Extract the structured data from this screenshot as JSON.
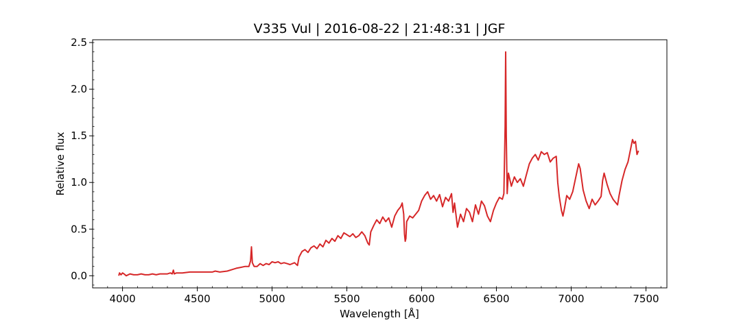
{
  "chart_data": {
    "type": "line",
    "title": "V335 Vul | 2016-08-22 | 21:48:31 | JGF",
    "xlabel": "Wavelength [Å]",
    "ylabel": "Relative flux",
    "xlim": [
      3800,
      7640
    ],
    "ylim": [
      -0.13,
      2.53
    ],
    "xticks": [
      4000,
      4500,
      5000,
      5500,
      6000,
      6500,
      7000,
      7500
    ],
    "yticks": [
      0.0,
      0.5,
      1.0,
      1.5,
      2.0,
      2.5
    ],
    "xtick_labels": [
      "4000",
      "4500",
      "5000",
      "5500",
      "6000",
      "6500",
      "7000",
      "7500"
    ],
    "ytick_labels": [
      "0.0",
      "0.5",
      "1.0",
      "1.5",
      "2.0",
      "2.5"
    ],
    "x_minor_step": 100,
    "y_minor_step": 0.1,
    "grid": false,
    "legend": "none",
    "series": [
      {
        "color": "#d62728",
        "points": [
          [
            3975,
            0.0
          ],
          [
            3980,
            0.03
          ],
          [
            3990,
            0.01
          ],
          [
            4000,
            0.03
          ],
          [
            4010,
            0.02
          ],
          [
            4025,
            0.0
          ],
          [
            4050,
            0.02
          ],
          [
            4075,
            0.01
          ],
          [
            4100,
            0.01
          ],
          [
            4125,
            0.02
          ],
          [
            4150,
            0.01
          ],
          [
            4175,
            0.01
          ],
          [
            4200,
            0.02
          ],
          [
            4225,
            0.01
          ],
          [
            4250,
            0.02
          ],
          [
            4275,
            0.02
          ],
          [
            4300,
            0.02
          ],
          [
            4320,
            0.03
          ],
          [
            4332,
            0.02
          ],
          [
            4340,
            0.06
          ],
          [
            4346,
            0.02
          ],
          [
            4360,
            0.03
          ],
          [
            4400,
            0.03
          ],
          [
            4450,
            0.04
          ],
          [
            4500,
            0.04
          ],
          [
            4550,
            0.04
          ],
          [
            4600,
            0.04
          ],
          [
            4620,
            0.05
          ],
          [
            4650,
            0.04
          ],
          [
            4700,
            0.05
          ],
          [
            4740,
            0.07
          ],
          [
            4760,
            0.08
          ],
          [
            4790,
            0.09
          ],
          [
            4820,
            0.1
          ],
          [
            4845,
            0.1
          ],
          [
            4856,
            0.16
          ],
          [
            4862,
            0.31
          ],
          [
            4868,
            0.14
          ],
          [
            4880,
            0.1
          ],
          [
            4900,
            0.1
          ],
          [
            4920,
            0.13
          ],
          [
            4940,
            0.11
          ],
          [
            4960,
            0.13
          ],
          [
            4980,
            0.12
          ],
          [
            5000,
            0.15
          ],
          [
            5020,
            0.14
          ],
          [
            5040,
            0.15
          ],
          [
            5060,
            0.13
          ],
          [
            5080,
            0.14
          ],
          [
            5100,
            0.13
          ],
          [
            5120,
            0.12
          ],
          [
            5150,
            0.14
          ],
          [
            5170,
            0.11
          ],
          [
            5180,
            0.2
          ],
          [
            5200,
            0.26
          ],
          [
            5220,
            0.28
          ],
          [
            5240,
            0.25
          ],
          [
            5260,
            0.3
          ],
          [
            5280,
            0.32
          ],
          [
            5300,
            0.29
          ],
          [
            5320,
            0.34
          ],
          [
            5340,
            0.31
          ],
          [
            5360,
            0.38
          ],
          [
            5380,
            0.35
          ],
          [
            5400,
            0.4
          ],
          [
            5420,
            0.37
          ],
          [
            5440,
            0.43
          ],
          [
            5460,
            0.4
          ],
          [
            5480,
            0.46
          ],
          [
            5500,
            0.44
          ],
          [
            5520,
            0.42
          ],
          [
            5540,
            0.45
          ],
          [
            5560,
            0.41
          ],
          [
            5580,
            0.43
          ],
          [
            5600,
            0.47
          ],
          [
            5620,
            0.43
          ],
          [
            5640,
            0.35
          ],
          [
            5650,
            0.33
          ],
          [
            5660,
            0.47
          ],
          [
            5680,
            0.54
          ],
          [
            5700,
            0.6
          ],
          [
            5720,
            0.56
          ],
          [
            5740,
            0.63
          ],
          [
            5760,
            0.58
          ],
          [
            5780,
            0.62
          ],
          [
            5800,
            0.52
          ],
          [
            5820,
            0.64
          ],
          [
            5840,
            0.7
          ],
          [
            5860,
            0.74
          ],
          [
            5870,
            0.78
          ],
          [
            5880,
            0.66
          ],
          [
            5885,
            0.45
          ],
          [
            5890,
            0.37
          ],
          [
            5895,
            0.4
          ],
          [
            5900,
            0.58
          ],
          [
            5920,
            0.64
          ],
          [
            5940,
            0.62
          ],
          [
            5960,
            0.66
          ],
          [
            5980,
            0.7
          ],
          [
            6000,
            0.8
          ],
          [
            6020,
            0.86
          ],
          [
            6040,
            0.9
          ],
          [
            6060,
            0.82
          ],
          [
            6080,
            0.86
          ],
          [
            6100,
            0.8
          ],
          [
            6120,
            0.87
          ],
          [
            6140,
            0.74
          ],
          [
            6160,
            0.84
          ],
          [
            6180,
            0.8
          ],
          [
            6200,
            0.88
          ],
          [
            6210,
            0.68
          ],
          [
            6220,
            0.78
          ],
          [
            6240,
            0.52
          ],
          [
            6260,
            0.66
          ],
          [
            6280,
            0.58
          ],
          [
            6300,
            0.72
          ],
          [
            6320,
            0.68
          ],
          [
            6340,
            0.58
          ],
          [
            6360,
            0.76
          ],
          [
            6380,
            0.66
          ],
          [
            6400,
            0.8
          ],
          [
            6420,
            0.75
          ],
          [
            6440,
            0.64
          ],
          [
            6460,
            0.58
          ],
          [
            6480,
            0.7
          ],
          [
            6500,
            0.78
          ],
          [
            6520,
            0.84
          ],
          [
            6540,
            0.82
          ],
          [
            6550,
            0.88
          ],
          [
            6558,
            1.6
          ],
          [
            6562,
            2.4
          ],
          [
            6566,
            1.5
          ],
          [
            6572,
            0.88
          ],
          [
            6580,
            1.1
          ],
          [
            6600,
            0.96
          ],
          [
            6620,
            1.06
          ],
          [
            6640,
            1.0
          ],
          [
            6660,
            1.04
          ],
          [
            6680,
            0.96
          ],
          [
            6700,
            1.08
          ],
          [
            6720,
            1.2
          ],
          [
            6740,
            1.26
          ],
          [
            6760,
            1.3
          ],
          [
            6780,
            1.24
          ],
          [
            6800,
            1.33
          ],
          [
            6820,
            1.3
          ],
          [
            6840,
            1.32
          ],
          [
            6860,
            1.22
          ],
          [
            6880,
            1.26
          ],
          [
            6900,
            1.28
          ],
          [
            6910,
            1.0
          ],
          [
            6920,
            0.85
          ],
          [
            6935,
            0.7
          ],
          [
            6945,
            0.64
          ],
          [
            6955,
            0.72
          ],
          [
            6970,
            0.86
          ],
          [
            6990,
            0.82
          ],
          [
            7010,
            0.9
          ],
          [
            7030,
            1.05
          ],
          [
            7050,
            1.2
          ],
          [
            7060,
            1.15
          ],
          [
            7080,
            0.92
          ],
          [
            7100,
            0.8
          ],
          [
            7120,
            0.72
          ],
          [
            7140,
            0.82
          ],
          [
            7160,
            0.76
          ],
          [
            7180,
            0.8
          ],
          [
            7200,
            0.85
          ],
          [
            7210,
            1.02
          ],
          [
            7220,
            1.1
          ],
          [
            7240,
            0.98
          ],
          [
            7260,
            0.88
          ],
          [
            7280,
            0.82
          ],
          [
            7300,
            0.78
          ],
          [
            7310,
            0.76
          ],
          [
            7320,
            0.86
          ],
          [
            7340,
            1.02
          ],
          [
            7360,
            1.14
          ],
          [
            7380,
            1.22
          ],
          [
            7400,
            1.38
          ],
          [
            7410,
            1.46
          ],
          [
            7420,
            1.42
          ],
          [
            7430,
            1.44
          ],
          [
            7440,
            1.3
          ],
          [
            7450,
            1.34
          ]
        ]
      }
    ]
  }
}
